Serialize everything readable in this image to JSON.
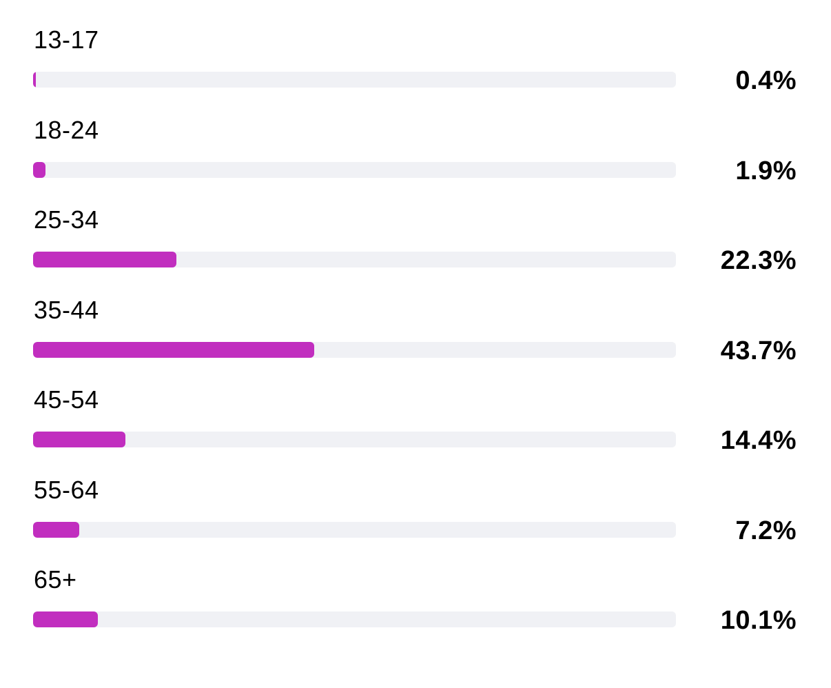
{
  "chart_data": {
    "type": "bar",
    "orientation": "horizontal",
    "categories": [
      "13-17",
      "18-24",
      "25-34",
      "35-44",
      "45-54",
      "55-64",
      "65+"
    ],
    "values": [
      0.4,
      1.9,
      22.3,
      43.7,
      14.4,
      7.2,
      10.1
    ],
    "value_labels": [
      "0.4%",
      "1.9%",
      "22.3%",
      "43.7%",
      "14.4%",
      "7.2%",
      "10.1%"
    ],
    "unit": "%",
    "xlim": [
      0,
      100
    ],
    "grid": false,
    "legend": "none",
    "colors": {
      "bar": "#c12ebf",
      "track": "#f0f1f5",
      "text": "#000000"
    }
  }
}
